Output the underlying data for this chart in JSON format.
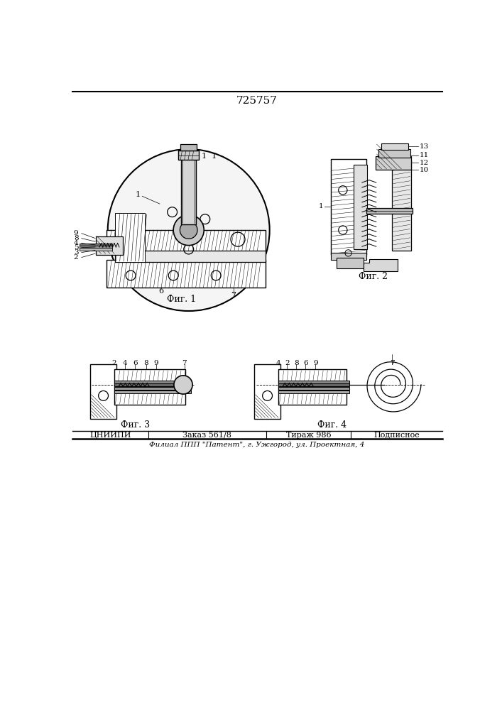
{
  "title": "725757",
  "footer_line1": "ЦНИИПИ    Заказ 561/8    Тираж 986    Подписное",
  "footer_line2": "Филиал ППП \"Патент\", г. Ужгород, ул. Проектная, 4",
  "fig1_label": "Фиг. 1",
  "fig2_label": "Фиг. 2",
  "fig3_label": "Фиг. 3",
  "fig4_label": "Фиг. 4",
  "bg_color": "#ffffff",
  "line_color": "#000000"
}
